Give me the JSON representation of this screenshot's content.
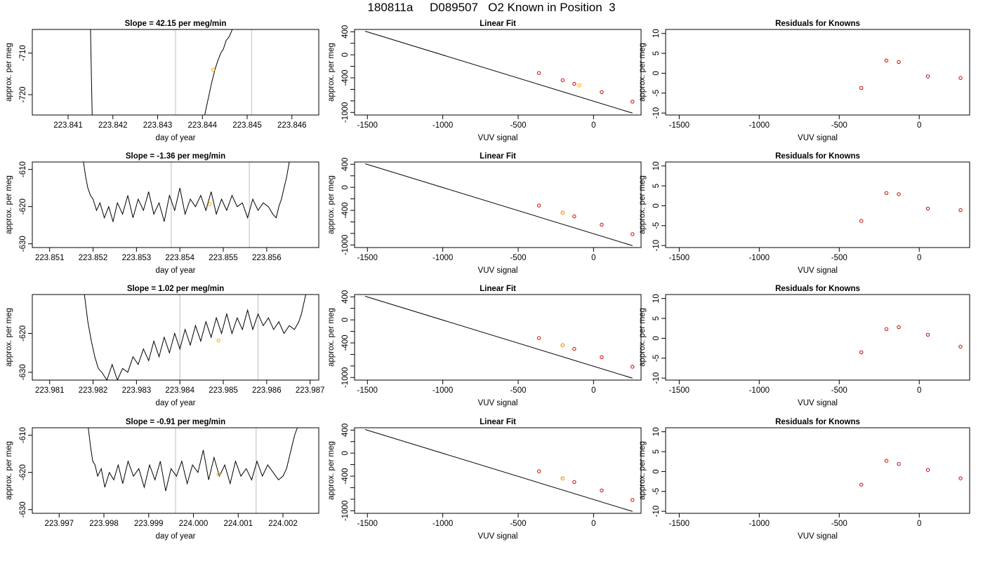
{
  "figure": {
    "title": "180811a     D089507   O2 Known in Position  3"
  },
  "chart_data": [
    {
      "type": "line",
      "panel": "timeseries",
      "row": 1,
      "title": "Slope =  42.15  per meg/min",
      "xlabel": "day of year",
      "ylabel": "approx. per meg",
      "xlim": [
        223.8402,
        223.8466
      ],
      "ylim": [
        -724.9,
        -704.3
      ],
      "xticks": [
        223.841,
        223.842,
        223.843,
        223.844,
        223.845,
        223.846
      ],
      "xtick_labels": [
        "223.841",
        "223.842",
        "223.843",
        "223.844",
        "223.845",
        "223.846"
      ],
      "yticks": [
        -720,
        -710
      ],
      "ytick_labels": [
        "-720",
        "-710"
      ],
      "vlines": [
        223.8434,
        223.8451
      ],
      "series": [
        {
          "x": [
            223.8415,
            223.84152,
            223.84154
          ],
          "y": [
            -704,
            -715,
            -726
          ]
        },
        {
          "x": [
            223.84405,
            223.84413,
            223.84421,
            223.84428,
            223.84434,
            223.84441,
            223.84447,
            223.84453,
            223.8446,
            223.84468
          ],
          "y": [
            -725,
            -721,
            -717,
            -714,
            -712,
            -710,
            -709,
            -707,
            -706,
            -704
          ]
        }
      ],
      "point": {
        "x": 223.84424,
        "y": -714.0,
        "color": "#FFA500"
      }
    },
    {
      "type": "scatter",
      "panel": "linear_fit",
      "row": 1,
      "title": "Linear Fit",
      "xlabel": "VUV signal",
      "ylabel": "approx. per meg",
      "xlim": [
        -1585,
        315
      ],
      "ylim": [
        -1045,
        440
      ],
      "xticks": [
        -1500,
        -1000,
        -500,
        0
      ],
      "xtick_labels": [
        "-1500",
        "-1000",
        "-500",
        "0"
      ],
      "yticks": [
        -1000,
        -800,
        -600,
        -400,
        -200,
        0,
        200,
        400
      ],
      "ytick_labels": [
        "-1000",
        "",
        "",
        "-400",
        "",
        "0",
        "",
        "400"
      ],
      "fit_line": {
        "x": [
          -1515,
          258
        ],
        "y": [
          410,
          -1012
        ]
      },
      "points": {
        "x": [
          -362,
          -205,
          -128,
          54,
          258
        ],
        "y": [
          -316,
          -441,
          -503,
          -649,
          -813
        ]
      },
      "highlight": {
        "x": -95,
        "y": -530,
        "color": "#FFA500"
      }
    },
    {
      "type": "scatter",
      "panel": "residuals",
      "row": 1,
      "title": "Residuals for Knowns",
      "xlabel": "VUV signal",
      "ylabel": "approx. per meg",
      "xlim": [
        -1585,
        315
      ],
      "ylim": [
        -10.5,
        11
      ],
      "xticks": [
        -1500,
        -1000,
        -500,
        0
      ],
      "xtick_labels": [
        "-1500",
        "-1000",
        "-500",
        "0"
      ],
      "yticks": [
        -10,
        -5,
        0,
        5,
        10
      ],
      "ytick_labels": [
        "-10",
        "-5",
        "0",
        "5",
        "10"
      ],
      "points": {
        "x": [
          -362,
          -205,
          -128,
          54,
          258
        ],
        "y": [
          -3.7,
          3.2,
          2.8,
          -0.8,
          -1.2
        ]
      }
    },
    {
      "type": "line",
      "panel": "timeseries",
      "row": 2,
      "title": "Slope =  -1.36  per meg/min",
      "xlabel": "day of year",
      "ylabel": "approx. per meg",
      "xlim": [
        223.8506,
        223.8572
      ],
      "ylim": [
        -631,
        -608
      ],
      "xticks": [
        223.851,
        223.852,
        223.853,
        223.854,
        223.855,
        223.856
      ],
      "xtick_labels": [
        "223.851",
        "223.852",
        "223.853",
        "223.854",
        "223.855",
        "223.856"
      ],
      "yticks": [
        -630,
        -620,
        -610
      ],
      "ytick_labels": [
        "-630",
        "-620",
        "-610"
      ],
      "vlines": [
        223.8538,
        223.8556
      ],
      "series": [
        {
          "x": [
            223.85178,
            223.85183,
            223.85188,
            223.85194,
            223.852,
            223.85208,
            223.85216,
            223.85226,
            223.85236,
            223.85246,
            223.85256,
            223.85268,
            223.8528,
            223.85292,
            223.85304,
            223.85316,
            223.85328,
            223.8534,
            223.85352,
            223.85364,
            223.85376,
            223.85388,
            223.854,
            223.85412,
            223.85424,
            223.85436,
            223.85448,
            223.8546,
            223.85472,
            223.85484,
            223.85496,
            223.85508,
            223.8552,
            223.85532,
            223.85544,
            223.85556,
            223.85568,
            223.8558,
            223.85592,
            223.85604,
            223.85614,
            223.85622,
            223.85628,
            223.85634,
            223.8564,
            223.85646,
            223.85652
          ],
          "y": [
            -608,
            -612,
            -615,
            -617,
            -618,
            -621,
            -619,
            -623,
            -620,
            -624,
            -619,
            -622,
            -617,
            -623,
            -618,
            -621,
            -616,
            -622,
            -619,
            -624,
            -617,
            -621,
            -615,
            -622,
            -618,
            -620,
            -617,
            -621,
            -616,
            -622,
            -618,
            -621,
            -617,
            -620,
            -619,
            -623,
            -618,
            -621,
            -619,
            -620,
            -622,
            -623,
            -620,
            -618,
            -615,
            -612,
            -608
          ]
        }
      ],
      "point": {
        "x": 223.85469,
        "y": -619.3,
        "color": "#FFA500"
      }
    },
    {
      "type": "scatter",
      "panel": "linear_fit",
      "row": 2,
      "title": "Linear Fit",
      "xlabel": "VUV signal",
      "ylabel": "approx. per meg",
      "xlim": [
        -1585,
        315
      ],
      "ylim": [
        -1045,
        440
      ],
      "xticks": [
        -1500,
        -1000,
        -500,
        0
      ],
      "xtick_labels": [
        "-1500",
        "-1000",
        "-500",
        "0"
      ],
      "yticks": [
        -1000,
        -800,
        -600,
        -400,
        -200,
        0,
        200,
        400
      ],
      "ytick_labels": [
        "-1000",
        "",
        "",
        "-400",
        "",
        "0",
        "",
        "400"
      ],
      "fit_line": {
        "x": [
          -1515,
          258
        ],
        "y": [
          410,
          -1012
        ]
      },
      "points": {
        "x": [
          -362,
          -205,
          -128,
          54,
          258
        ],
        "y": [
          -316,
          -441,
          -503,
          -649,
          -813
        ]
      },
      "highlight": {
        "x": -205,
        "y": -441,
        "color": "#FFA500"
      }
    },
    {
      "type": "scatter",
      "panel": "residuals",
      "row": 2,
      "title": "Residuals for Knowns",
      "xlabel": "VUV signal",
      "ylabel": "approx. per meg",
      "xlim": [
        -1585,
        315
      ],
      "ylim": [
        -10.5,
        11
      ],
      "xticks": [
        -1500,
        -1000,
        -500,
        0
      ],
      "xtick_labels": [
        "-1500",
        "-1000",
        "-500",
        "0"
      ],
      "yticks": [
        -10,
        -5,
        0,
        5,
        10
      ],
      "ytick_labels": [
        "-10",
        "-5",
        "0",
        "5",
        "10"
      ],
      "points": {
        "x": [
          -362,
          -205,
          -128,
          54,
          258
        ],
        "y": [
          -3.8,
          3.2,
          2.9,
          -0.7,
          -1.1
        ]
      }
    },
    {
      "type": "line",
      "panel": "timeseries",
      "row": 3,
      "title": "Slope =  1.02  per meg/min",
      "xlabel": "day of year",
      "ylabel": "approx. per meg",
      "xlim": [
        223.9806,
        223.9872
      ],
      "ylim": [
        -632,
        -610
      ],
      "xticks": [
        223.981,
        223.982,
        223.983,
        223.984,
        223.985,
        223.986,
        223.987
      ],
      "xtick_labels": [
        "223.981",
        "223.982",
        "223.983",
        "223.984",
        "223.985",
        "223.986",
        "223.987"
      ],
      "yticks": [
        -630,
        -620
      ],
      "ytick_labels": [
        "-630",
        "-620"
      ],
      "vlines": [
        223.984,
        223.9858
      ],
      "series": [
        {
          "x": [
            223.9818,
            223.98188,
            223.98196,
            223.98204,
            223.98212,
            223.9822,
            223.98232,
            223.98244,
            223.98256,
            223.98268,
            223.9828,
            223.98292,
            223.98304,
            223.98316,
            223.98328,
            223.9834,
            223.98352,
            223.98364,
            223.98376,
            223.98388,
            223.984,
            223.98412,
            223.98424,
            223.98436,
            223.98448,
            223.9846,
            223.98472,
            223.98484,
            223.98496,
            223.98508,
            223.9852,
            223.98532,
            223.98544,
            223.98556,
            223.98568,
            223.9858,
            223.98592,
            223.98604,
            223.98616,
            223.98628,
            223.9864,
            223.98652,
            223.98664,
            223.98674,
            223.9868,
            223.98686,
            223.9869
          ],
          "y": [
            -610,
            -617,
            -622,
            -626,
            -629,
            -630,
            -632,
            -628,
            -632,
            -629,
            -630,
            -626,
            -628,
            -624,
            -627,
            -622,
            -626,
            -621,
            -625,
            -620,
            -624,
            -619,
            -623,
            -618,
            -622,
            -617,
            -621,
            -616,
            -620,
            -615,
            -620,
            -616,
            -619,
            -614,
            -619,
            -615,
            -618,
            -616,
            -619,
            -617,
            -620,
            -618,
            -619,
            -617,
            -615,
            -612,
            -610
          ]
        }
      ],
      "point": {
        "x": 223.98489,
        "y": -621.8,
        "color": "#FFA500"
      }
    },
    {
      "type": "scatter",
      "panel": "linear_fit",
      "row": 3,
      "title": "Linear Fit",
      "xlabel": "VUV signal",
      "ylabel": "approx. per meg",
      "xlim": [
        -1585,
        315
      ],
      "ylim": [
        -1045,
        440
      ],
      "xticks": [
        -1500,
        -1000,
        -500,
        0
      ],
      "xtick_labels": [
        "-1500",
        "-1000",
        "-500",
        "0"
      ],
      "yticks": [
        -1000,
        -800,
        -600,
        -400,
        -200,
        0,
        200,
        400
      ],
      "ytick_labels": [
        "-1000",
        "",
        "",
        "-400",
        "",
        "0",
        "",
        "400"
      ],
      "fit_line": {
        "x": [
          -1515,
          258
        ],
        "y": [
          410,
          -1012
        ]
      },
      "points": {
        "x": [
          -362,
          -205,
          -128,
          54,
          258
        ],
        "y": [
          -316,
          -441,
          -503,
          -649,
          -813
        ]
      },
      "highlight": {
        "x": -205,
        "y": -441,
        "color": "#FFA500"
      }
    },
    {
      "type": "scatter",
      "panel": "residuals",
      "row": 3,
      "title": "Residuals for Knowns",
      "xlabel": "VUV signal",
      "ylabel": "approx. per meg",
      "xlim": [
        -1585,
        315
      ],
      "ylim": [
        -10.5,
        11
      ],
      "xticks": [
        -1500,
        -1000,
        -500,
        0
      ],
      "xtick_labels": [
        "-1500",
        "-1000",
        "-500",
        "0"
      ],
      "yticks": [
        -10,
        -5,
        0,
        5,
        10
      ],
      "ytick_labels": [
        "-10",
        "-5",
        "0",
        "5",
        "10"
      ],
      "points": {
        "x": [
          -362,
          -205,
          -128,
          54,
          258
        ],
        "y": [
          -3.5,
          2.3,
          2.8,
          0.9,
          -2.1
        ]
      }
    },
    {
      "type": "line",
      "panel": "timeseries",
      "row": 4,
      "title": "Slope =  -0.91  per meg/min",
      "xlabel": "day of year",
      "ylabel": "approx. per meg",
      "xlim": [
        223.9964,
        224.0028
      ],
      "ylim": [
        -631,
        -608
      ],
      "xticks": [
        223.997,
        223.998,
        223.999,
        224.0,
        224.001,
        224.002
      ],
      "xtick_labels": [
        "223.997",
        "223.998",
        "223.999",
        "224.000",
        "224.001",
        "224.002"
      ],
      "yticks": [
        -630,
        -620,
        -610
      ],
      "ytick_labels": [
        "-630",
        "-620",
        "-610"
      ],
      "vlines": [
        223.9996,
        224.0014
      ],
      "series": [
        {
          "x": [
            223.99765,
            223.9977,
            223.99775,
            223.9978,
            223.99786,
            223.99794,
            223.99802,
            223.99812,
            223.99822,
            223.99832,
            223.99842,
            223.99854,
            223.99866,
            223.99878,
            223.9989,
            223.99902,
            223.99914,
            223.99926,
            223.99938,
            223.9995,
            223.99962,
            223.99974,
            223.99986,
            223.99998,
            224.0001,
            224.00022,
            224.00034,
            224.00046,
            224.00058,
            224.0007,
            224.00082,
            224.00094,
            224.00106,
            224.00118,
            224.0013,
            224.00142,
            224.00154,
            224.00166,
            224.00178,
            224.0019,
            224.002,
            224.00208,
            224.00214,
            224.0022,
            224.00226,
            224.00232
          ],
          "y": [
            -608,
            -613,
            -617,
            -618,
            -621,
            -619,
            -624,
            -620,
            -622,
            -618,
            -623,
            -617,
            -621,
            -619,
            -624,
            -618,
            -622,
            -617,
            -625,
            -619,
            -621,
            -617,
            -623,
            -618,
            -620,
            -614,
            -622,
            -616,
            -621,
            -618,
            -623,
            -617,
            -621,
            -619,
            -622,
            -617,
            -621,
            -618,
            -620,
            -622,
            -621,
            -619,
            -616,
            -613,
            -610,
            -608
          ]
        }
      ],
      "point": {
        "x": 224.00056,
        "y": -620.5,
        "color": "#FFA500"
      }
    },
    {
      "type": "scatter",
      "panel": "linear_fit",
      "row": 4,
      "title": "Linear Fit",
      "xlabel": "VUV signal",
      "ylabel": "approx. per meg",
      "xlim": [
        -1585,
        315
      ],
      "ylim": [
        -1045,
        440
      ],
      "xticks": [
        -1500,
        -1000,
        -500,
        0
      ],
      "xtick_labels": [
        "-1500",
        "-1000",
        "-500",
        "0"
      ],
      "yticks": [
        -1000,
        -800,
        -600,
        -400,
        -200,
        0,
        200,
        400
      ],
      "ytick_labels": [
        "-1000",
        "",
        "",
        "-400",
        "",
        "0",
        "",
        "400"
      ],
      "fit_line": {
        "x": [
          -1515,
          258
        ],
        "y": [
          410,
          -1012
        ]
      },
      "points": {
        "x": [
          -362,
          -205,
          -128,
          54,
          258
        ],
        "y": [
          -316,
          -441,
          -503,
          -649,
          -813
        ]
      },
      "highlight": {
        "x": -205,
        "y": -441,
        "color": "#FFA500"
      }
    },
    {
      "type": "scatter",
      "panel": "residuals",
      "row": 4,
      "title": "Residuals for Knowns",
      "xlabel": "VUV signal",
      "ylabel": "approx. per meg",
      "xlim": [
        -1585,
        315
      ],
      "ylim": [
        -10.5,
        11
      ],
      "xticks": [
        -1500,
        -1000,
        -500,
        0
      ],
      "xtick_labels": [
        "-1500",
        "-1000",
        "-500",
        "0"
      ],
      "yticks": [
        -10,
        -5,
        0,
        5,
        10
      ],
      "ytick_labels": [
        "-10",
        "-5",
        "0",
        "5",
        "10"
      ],
      "points": {
        "x": [
          -362,
          -205,
          -128,
          54,
          258
        ],
        "y": [
          -3.3,
          2.7,
          1.9,
          0.4,
          -1.7
        ]
      }
    }
  ],
  "colors": {
    "line": "#000000",
    "box": "#000000",
    "vline": "#C8C8C8",
    "point": "#CD0000",
    "highlight": "#FFA500"
  }
}
